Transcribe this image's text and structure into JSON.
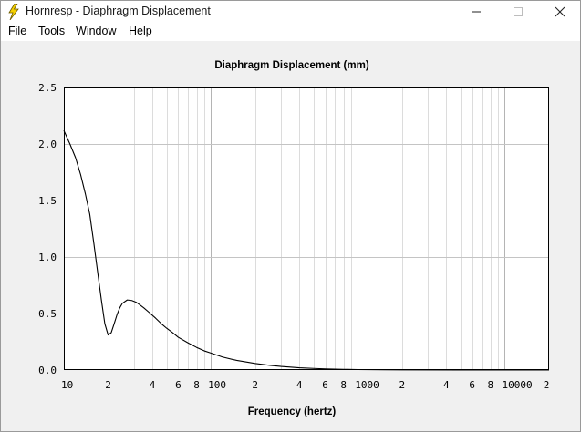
{
  "window": {
    "title": "Hornresp - Diaphragm Displacement",
    "app_icon": "lightning-bolt-icon",
    "controls": [
      "minimize-icon",
      "maximize-icon",
      "close-icon"
    ]
  },
  "menubar": {
    "items": [
      {
        "label": "File",
        "mnemonic": "F",
        "rest": "ile"
      },
      {
        "label": "Tools",
        "mnemonic": "T",
        "rest": "ools"
      },
      {
        "label": "Window",
        "mnemonic": "W",
        "rest": "indow"
      },
      {
        "label": "Help",
        "mnemonic": "H",
        "rest": "elp"
      }
    ]
  },
  "colors": {
    "plot_background": "#ffffff",
    "grid": "#c8c8c8",
    "curve": "#000000",
    "icon_yellow": "#f5d000"
  },
  "chart_data": {
    "type": "line",
    "title": "Diaphragm Displacement (mm)",
    "xlabel": "Frequency (hertz)",
    "ylabel": "",
    "x_scale": "log",
    "xlim": [
      10,
      20000
    ],
    "ylim": [
      0,
      2.5
    ],
    "grid": true,
    "x_tick_labels": [
      {
        "value": 10,
        "label": "10"
      },
      {
        "value": 20,
        "label": "2"
      },
      {
        "value": 40,
        "label": "4"
      },
      {
        "value": 60,
        "label": "6"
      },
      {
        "value": 80,
        "label": "8"
      },
      {
        "value": 100,
        "label": "100"
      },
      {
        "value": 200,
        "label": "2"
      },
      {
        "value": 400,
        "label": "4"
      },
      {
        "value": 600,
        "label": "6"
      },
      {
        "value": 800,
        "label": "8"
      },
      {
        "value": 1000,
        "label": "1000"
      },
      {
        "value": 2000,
        "label": "2"
      },
      {
        "value": 4000,
        "label": "4"
      },
      {
        "value": 6000,
        "label": "6"
      },
      {
        "value": 8000,
        "label": "8"
      },
      {
        "value": 10000,
        "label": "10000"
      },
      {
        "value": 20000,
        "label": "2"
      }
    ],
    "y_tick_labels": [
      {
        "value": 0,
        "label": "0.0"
      },
      {
        "value": 0.5,
        "label": "0.5"
      },
      {
        "value": 1.0,
        "label": "1.0"
      },
      {
        "value": 1.5,
        "label": "1.5"
      },
      {
        "value": 2.0,
        "label": "2.0"
      },
      {
        "value": 2.5,
        "label": "2.5"
      }
    ],
    "series": [
      {
        "x": [
          10,
          11,
          12,
          13,
          14,
          15,
          16,
          17,
          18,
          19,
          20,
          21,
          22,
          23,
          24,
          25,
          27,
          29,
          31,
          33,
          35,
          38,
          42,
          46,
          50,
          55,
          60,
          70,
          80,
          90,
          100,
          120,
          150,
          200,
          250,
          300,
          400,
          500,
          600,
          800,
          1000,
          1500,
          2000,
          5000,
          10000,
          20000
        ],
        "y": [
          2.12,
          2.0,
          1.88,
          1.73,
          1.56,
          1.38,
          1.12,
          0.86,
          0.62,
          0.41,
          0.31,
          0.33,
          0.41,
          0.49,
          0.55,
          0.59,
          0.62,
          0.615,
          0.6,
          0.575,
          0.55,
          0.51,
          0.46,
          0.41,
          0.37,
          0.33,
          0.29,
          0.24,
          0.2,
          0.17,
          0.15,
          0.115,
          0.085,
          0.058,
          0.042,
          0.032,
          0.02,
          0.014,
          0.01,
          0.006,
          0.004,
          0.002,
          0.001,
          0.0003,
          0.0001,
          0.0
        ]
      }
    ]
  }
}
